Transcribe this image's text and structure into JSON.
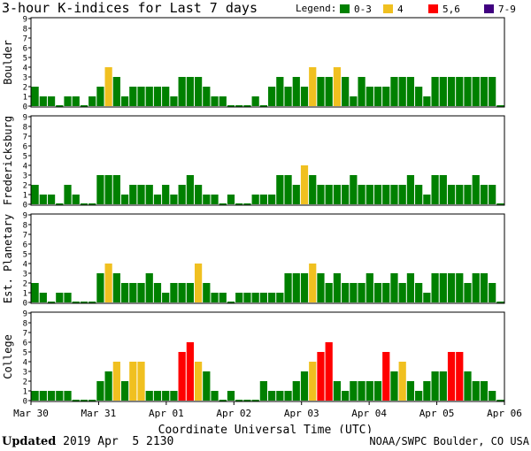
{
  "chart_data": {
    "type": "bar",
    "title": "3-hour K-indices for Last 7 days",
    "xlabel": "Coordinate Universal Time (UTC)",
    "ylim": [
      0,
      9
    ],
    "yticks": [
      0,
      1,
      2,
      3,
      4,
      5,
      6,
      7,
      8,
      9
    ],
    "x_tick_labels": [
      "Mar 30",
      "Mar 31",
      "Apr 01",
      "Apr 02",
      "Apr 03",
      "Apr 04",
      "Apr 05",
      "Apr 06"
    ],
    "legend": {
      "label": "Legend:",
      "placement": "top-right",
      "items": [
        {
          "label": "0-3",
          "color": "#008000"
        },
        {
          "label": "4",
          "color": "#f0c020"
        },
        {
          "label": "5,6",
          "color": "#ff0000"
        },
        {
          "label": "7-9",
          "color": "#400080"
        }
      ]
    },
    "grid": false,
    "series": [
      {
        "name": "Boulder",
        "values": [
          2,
          1,
          1,
          0,
          1,
          1,
          0,
          1,
          2,
          4,
          3,
          1,
          2,
          2,
          2,
          2,
          2,
          1,
          3,
          3,
          3,
          2,
          1,
          1,
          0,
          0,
          0,
          1,
          0,
          2,
          3,
          2,
          3,
          2,
          4,
          3,
          3,
          4,
          3,
          1,
          3,
          2,
          2,
          2,
          3,
          3,
          3,
          2,
          1,
          3,
          3,
          3,
          3,
          3,
          3,
          3,
          3,
          0
        ]
      },
      {
        "name": "Fredericksburg",
        "values": [
          2,
          1,
          1,
          0,
          2,
          1,
          0,
          0,
          3,
          3,
          3,
          1,
          2,
          2,
          2,
          1,
          2,
          1,
          2,
          3,
          2,
          1,
          1,
          0,
          1,
          0,
          0,
          1,
          1,
          1,
          3,
          3,
          2,
          4,
          3,
          2,
          2,
          2,
          2,
          3,
          2,
          2,
          2,
          2,
          2,
          2,
          3,
          2,
          1,
          3,
          3,
          2,
          2,
          2,
          3,
          2,
          2,
          0
        ]
      },
      {
        "name": "Est. Planetary",
        "values": [
          2,
          1,
          0,
          1,
          1,
          0,
          0,
          0,
          3,
          4,
          3,
          2,
          2,
          2,
          3,
          2,
          1,
          2,
          2,
          2,
          4,
          2,
          1,
          1,
          0,
          1,
          1,
          1,
          1,
          1,
          1,
          3,
          3,
          3,
          4,
          3,
          2,
          3,
          2,
          2,
          2,
          3,
          2,
          2,
          3,
          2,
          3,
          2,
          1,
          3,
          3,
          3,
          3,
          2,
          3,
          3,
          2,
          0
        ]
      },
      {
        "name": "College",
        "values": [
          1,
          1,
          1,
          1,
          1,
          0,
          0,
          0,
          2,
          3,
          4,
          2,
          4,
          4,
          1,
          1,
          1,
          1,
          5,
          6,
          4,
          3,
          1,
          0,
          1,
          0,
          0,
          0,
          2,
          1,
          1,
          1,
          2,
          3,
          4,
          5,
          6,
          2,
          1,
          2,
          2,
          2,
          2,
          5,
          3,
          4,
          2,
          1,
          2,
          3,
          3,
          5,
          5,
          3,
          2,
          2,
          1,
          0
        ]
      }
    ]
  },
  "footer": {
    "updated_label": "Updated",
    "updated_value": " 2019 Apr  5 2130",
    "source": "NOAA/SWPC Boulder, CO USA"
  }
}
